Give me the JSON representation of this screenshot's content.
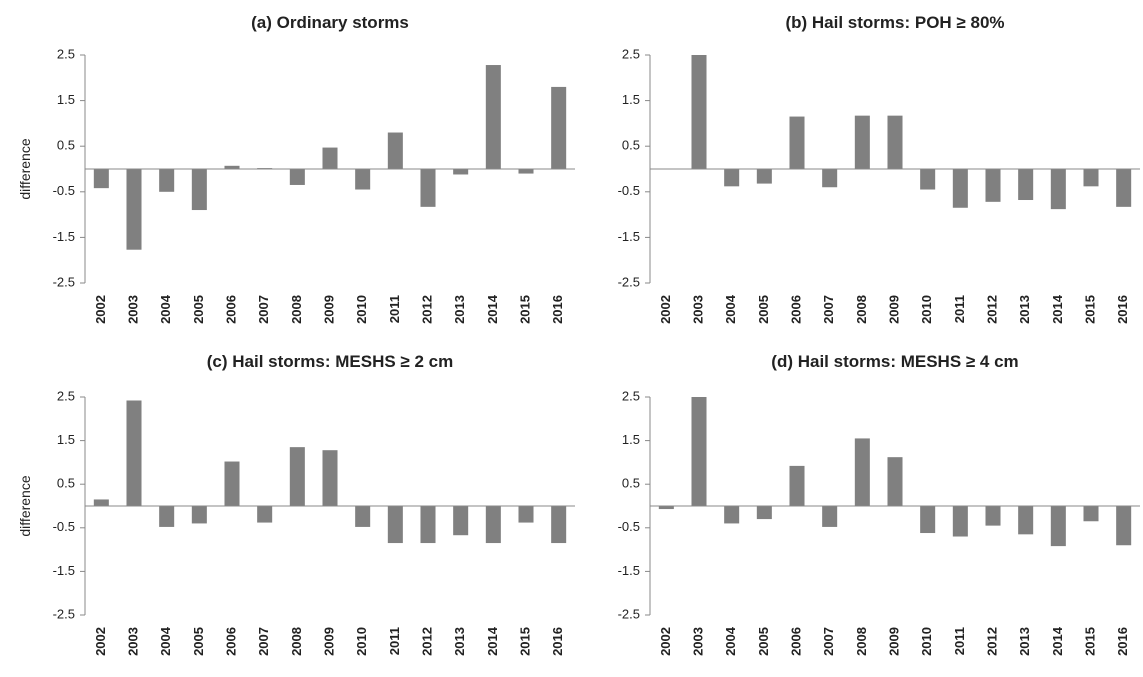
{
  "chart_data": [
    {
      "type": "bar",
      "title": "(a) Ordinary storms",
      "y_label": "difference",
      "color": "#808080",
      "categories": [
        "2002",
        "2003",
        "2004",
        "2005",
        "2006",
        "2007",
        "2008",
        "2009",
        "2010",
        "2011",
        "2012",
        "2013",
        "2014",
        "2015",
        "2016"
      ],
      "values": [
        -0.42,
        -1.77,
        -0.5,
        -0.9,
        0.07,
        0.02,
        -0.35,
        0.47,
        -0.45,
        0.8,
        -0.83,
        -0.12,
        2.28,
        -0.1,
        1.8
      ],
      "ylim": [
        -2.5,
        2.5
      ],
      "yticks": [
        -2.5,
        -1.5,
        -0.5,
        0.5,
        1.5,
        2.5
      ],
      "grid": false
    },
    {
      "type": "bar",
      "title": "(b) Hail storms: POH ≥ 80%",
      "color": "#808080",
      "categories": [
        "2002",
        "2003",
        "2004",
        "2005",
        "2006",
        "2007",
        "2008",
        "2009",
        "2010",
        "2011",
        "2012",
        "2013",
        "2014",
        "2015",
        "2016"
      ],
      "values": [
        0,
        2.5,
        -0.38,
        -0.32,
        1.15,
        -0.4,
        1.17,
        1.17,
        -0.45,
        -0.85,
        -0.72,
        -0.68,
        -0.88,
        -0.38,
        -0.83
      ],
      "ylim": [
        -2.5,
        2.5
      ],
      "yticks": [
        -2.5,
        -1.5,
        -0.5,
        0.5,
        1.5,
        2.5
      ],
      "grid": false
    },
    {
      "type": "bar",
      "title": "(c) Hail storms: MESHS ≥ 2 cm",
      "y_label": "difference",
      "color": "#808080",
      "categories": [
        "2002",
        "2003",
        "2004",
        "2005",
        "2006",
        "2007",
        "2008",
        "2009",
        "2010",
        "2011",
        "2012",
        "2013",
        "2014",
        "2015",
        "2016"
      ],
      "values": [
        0.15,
        2.42,
        -0.48,
        -0.4,
        1.02,
        -0.38,
        1.35,
        1.28,
        -0.48,
        -0.85,
        -0.85,
        -0.67,
        -0.85,
        -0.38,
        -0.85
      ],
      "ylim": [
        -2.5,
        2.5
      ],
      "yticks": [
        -2.5,
        -1.5,
        -0.5,
        0.5,
        1.5,
        2.5
      ],
      "grid": false
    },
    {
      "type": "bar",
      "title": "(d) Hail storms: MESHS ≥ 4 cm",
      "color": "#808080",
      "categories": [
        "2002",
        "2003",
        "2004",
        "2005",
        "2006",
        "2007",
        "2008",
        "2009",
        "2010",
        "2011",
        "2012",
        "2013",
        "2014",
        "2015",
        "2016"
      ],
      "values": [
        -0.07,
        2.5,
        -0.4,
        -0.3,
        0.92,
        -0.48,
        1.55,
        1.12,
        -0.62,
        -0.7,
        -0.45,
        -0.65,
        -0.92,
        -0.35,
        -0.9
      ],
      "ylim": [
        -2.5,
        2.5
      ],
      "yticks": [
        -2.5,
        -1.5,
        -0.5,
        0.5,
        1.5,
        2.5
      ],
      "grid": false
    }
  ]
}
